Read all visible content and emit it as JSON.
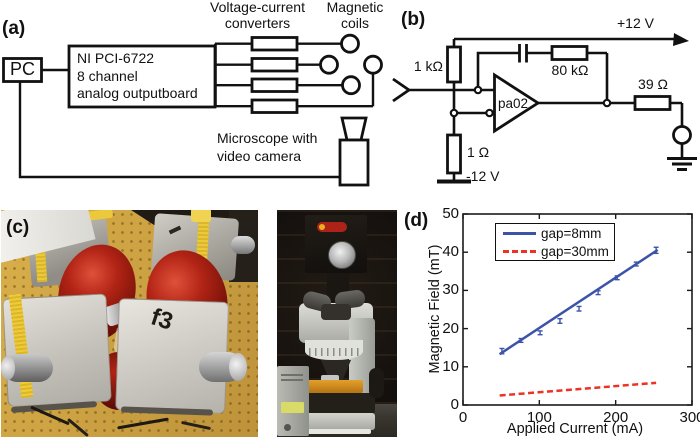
{
  "panel_a": {
    "label": "(a)",
    "pc_label": "PC",
    "daq_label": "NI PCI-6722\n8 channel\nanalog outputboard",
    "converters_label": "Voltage-current\nconverters",
    "coils_label": "Magnetic\ncoils",
    "microscope_label": "Microscope with\nvideo camera"
  },
  "panel_b": {
    "label": "(b)",
    "supply_positive": "+12 V",
    "supply_negative": "-12 V",
    "resistor_input": "1 kΩ",
    "resistor_feedback": "80 kΩ",
    "resistor_output": "39 Ω",
    "resistor_sense": "1 Ω",
    "opamp_label": "pa02"
  },
  "panel_c": {
    "label": "(c)",
    "block_marking": "f3"
  },
  "panel_d": {
    "label": "(d)"
  },
  "chart_data": {
    "type": "line",
    "title": "",
    "xlabel": "Applied Current (mA)",
    "ylabel": "Magnetic Field (mT)",
    "xlim": [
      0,
      300
    ],
    "ylim": [
      0,
      50
    ],
    "xticks": [
      0,
      100,
      200,
      300
    ],
    "yticks": [
      0,
      10,
      20,
      30,
      40,
      50
    ],
    "grid": false,
    "legend_position": "upper-left-inside",
    "series": [
      {
        "name": "gap=8mm",
        "color": "#3B54A8",
        "line_style": "solid",
        "marker": "errorbar",
        "x": [
          51,
          76,
          101,
          127,
          152,
          177,
          202,
          227,
          253
        ],
        "y": [
          14.1,
          16.9,
          18.9,
          22.0,
          25.2,
          29.4,
          33.3,
          36.9,
          40.5
        ],
        "yerr": [
          0.7,
          0.5,
          0.5,
          0.6,
          0.6,
          0.5,
          0.5,
          0.5,
          0.8
        ],
        "fit_line": {
          "x": [
            48,
            255
          ],
          "y": [
            13.3,
            40.6
          ]
        }
      },
      {
        "name": "gap=30mm",
        "color": "#ED3124",
        "line_style": "dashed",
        "x": [
          48,
          253
        ],
        "y": [
          2.5,
          5.8
        ]
      }
    ]
  }
}
